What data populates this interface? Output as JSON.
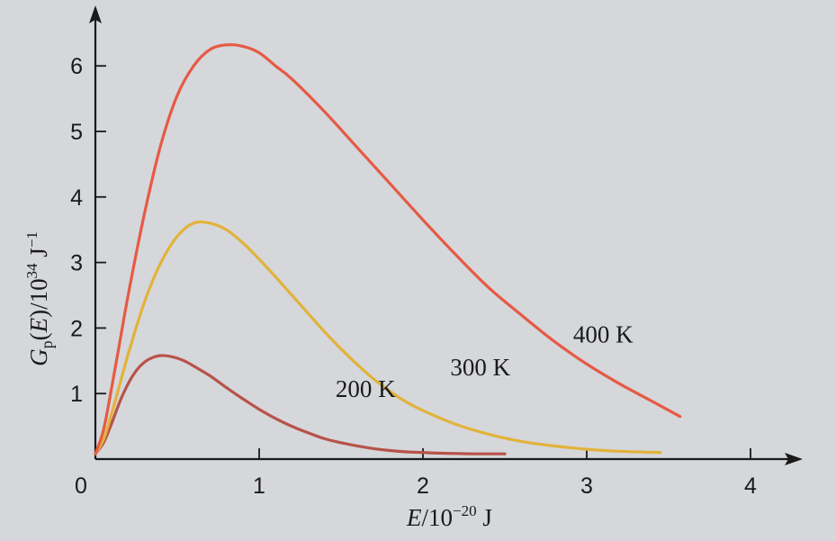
{
  "chart_data": {
    "type": "line",
    "title": "",
    "xlabel": {
      "italic": "E",
      "rest": "/10",
      "sup": "−20",
      "unit": " J"
    },
    "ylabel": {
      "italic_main": "G",
      "sub": "p",
      "middle": "(",
      "italic_arg": "E",
      "rest": ")/10",
      "sup1": "34",
      "unit": " J",
      "sup2": "−1"
    },
    "xlim": [
      0,
      4.3
    ],
    "ylim": [
      0,
      6.6
    ],
    "xticks": [
      0,
      1,
      2,
      3,
      4
    ],
    "xtick_labels": [
      "0",
      "1",
      "2",
      "3",
      "4"
    ],
    "yticks": [
      1,
      2,
      3,
      4,
      5,
      6
    ],
    "ytick_labels": [
      "1",
      "2",
      "3",
      "4",
      "5",
      "6"
    ],
    "grid": false,
    "legend": "none",
    "series": [
      {
        "name": "200 K",
        "color": "#b8524a",
        "x": [
          0.0,
          0.05,
          0.1,
          0.15,
          0.2,
          0.25,
          0.3,
          0.35,
          0.4,
          0.45,
          0.5,
          0.55,
          0.6,
          0.7,
          0.8,
          0.9,
          1.0,
          1.1,
          1.2,
          1.3,
          1.4,
          1.5,
          1.6,
          1.7,
          1.8,
          1.9,
          2.0,
          2.1,
          2.2,
          2.3,
          2.4,
          2.5
        ],
        "y": [
          0.08,
          0.25,
          0.55,
          0.88,
          1.15,
          1.35,
          1.48,
          1.55,
          1.58,
          1.57,
          1.54,
          1.49,
          1.42,
          1.27,
          1.09,
          0.92,
          0.76,
          0.62,
          0.5,
          0.4,
          0.31,
          0.25,
          0.2,
          0.16,
          0.13,
          0.11,
          0.1,
          0.09,
          0.085,
          0.08,
          0.08,
          0.08
        ]
      },
      {
        "name": "300 K",
        "color": "#e2b33a",
        "x": [
          0.0,
          0.05,
          0.1,
          0.15,
          0.2,
          0.3,
          0.4,
          0.5,
          0.6,
          0.7,
          0.8,
          0.9,
          1.0,
          1.1,
          1.2,
          1.3,
          1.4,
          1.5,
          1.6,
          1.7,
          1.8,
          1.9,
          2.0,
          2.2,
          2.4,
          2.6,
          2.8,
          3.0,
          3.2,
          3.45
        ],
        "y": [
          0.08,
          0.3,
          0.7,
          1.15,
          1.6,
          2.4,
          3.0,
          3.4,
          3.6,
          3.6,
          3.5,
          3.3,
          3.05,
          2.78,
          2.5,
          2.22,
          1.94,
          1.68,
          1.44,
          1.22,
          1.03,
          0.87,
          0.74,
          0.53,
          0.38,
          0.27,
          0.2,
          0.15,
          0.12,
          0.1
        ]
      },
      {
        "name": "400 K",
        "color": "#e65a44",
        "x": [
          0.0,
          0.05,
          0.1,
          0.15,
          0.2,
          0.3,
          0.4,
          0.5,
          0.6,
          0.7,
          0.8,
          0.9,
          1.0,
          1.1,
          1.2,
          1.4,
          1.6,
          1.8,
          2.0,
          2.2,
          2.4,
          2.6,
          2.8,
          3.0,
          3.2,
          3.4,
          3.57
        ],
        "y": [
          0.08,
          0.45,
          1.1,
          1.8,
          2.5,
          3.75,
          4.8,
          5.55,
          6.0,
          6.25,
          6.32,
          6.3,
          6.2,
          6.0,
          5.8,
          5.3,
          4.75,
          4.2,
          3.65,
          3.12,
          2.62,
          2.2,
          1.8,
          1.45,
          1.15,
          0.88,
          0.65
        ]
      }
    ],
    "annotations": [
      {
        "text": "200 K",
        "x": 1.65,
        "y": 0.95
      },
      {
        "text": "300 K",
        "x": 2.35,
        "y": 1.28
      },
      {
        "text": "400 K",
        "x": 3.1,
        "y": 1.78
      }
    ]
  }
}
